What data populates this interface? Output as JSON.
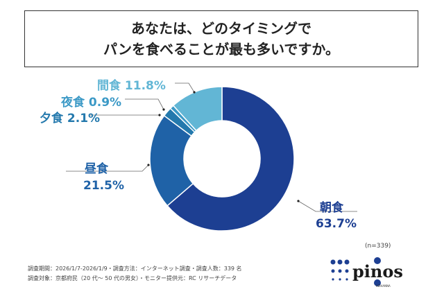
{
  "title": {
    "line1": "あなたは、どのタイミングで",
    "line2": "パンを食べることが最も多いですか。"
  },
  "chart_data": {
    "type": "pie",
    "donut": true,
    "start": "top",
    "direction": "clockwise",
    "categories": [
      "朝食",
      "昼食",
      "夕食",
      "夜食",
      "間食"
    ],
    "values": [
      63.7,
      21.5,
      2.1,
      0.9,
      11.8
    ],
    "labels": [
      "63.7%",
      "21.5%",
      "2.1%",
      "0.9%",
      "11.8%"
    ],
    "colors": [
      "#1d3f92",
      "#1f62a7",
      "#2479ad",
      "#3b99c6",
      "#62b6d5"
    ],
    "label_colors": [
      "#1d3f92",
      "#1f62a7",
      "#2479ad",
      "#3b99c6",
      "#62b6d5"
    ]
  },
  "sample": "(n=339)",
  "footer": {
    "line1": "調査期間：2026/1/7-2026/1/9・調査方法：インターネット調査・調査人数：339 名",
    "line2": "調査対象：京都府民（20 代～ 50 代の男女）・モニター提供元：RC リサーチデータ"
  },
  "logo": {
    "text": "pinos",
    "sub": "KEIHANNA",
    "tag": "Waterfront Fitness"
  }
}
